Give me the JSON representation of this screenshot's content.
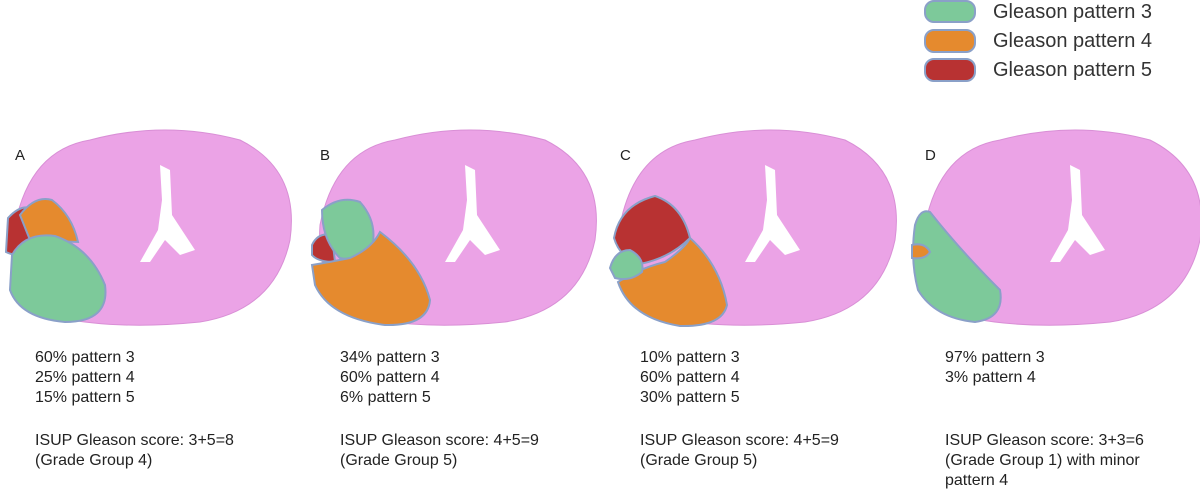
{
  "legend": [
    {
      "label": "Gleason pattern 3"
    },
    {
      "label": "Gleason pattern 4"
    },
    {
      "label": "Gleason pattern 5"
    }
  ],
  "panels": [
    {
      "label": "A",
      "composition": [
        "60% pattern 3",
        "25% pattern 4",
        "15% pattern 5"
      ],
      "score": [
        "ISUP Gleason score: 3+5=8",
        "(Grade Group 4)"
      ]
    },
    {
      "label": "B",
      "composition": [
        "34% pattern 3",
        "60% pattern 4",
        "6% pattern 5"
      ],
      "score": [
        "ISUP Gleason score: 4+5=9",
        "(Grade Group 5)"
      ]
    },
    {
      "label": "C",
      "composition": [
        "10% pattern 3",
        "60% pattern 4",
        "30% pattern 5"
      ],
      "score": [
        "ISUP Gleason score: 4+5=9",
        "(Grade Group 5)"
      ]
    },
    {
      "label": "D",
      "composition": [
        "97% pattern 3",
        "3% pattern 4"
      ],
      "score": [
        "ISUP Gleason score: 3+3=6",
        "(Grade Group 1) with minor",
        "pattern 4"
      ]
    }
  ]
}
